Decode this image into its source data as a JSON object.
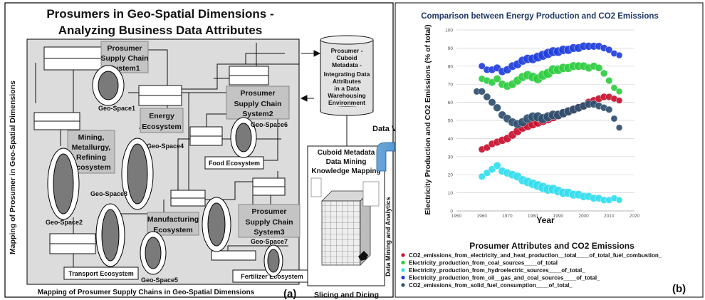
{
  "left_panel": {
    "title_line1": "Prosumers in Geo-Spatial Dimensions -",
    "title_line2": "Analyzing Business Data Attributes",
    "side_label": "Mapping of Prosumer in Geo-Spatial Dimensions",
    "bottom_label": "Mapping of Prosumer Supply Chains in Geo-Spatial Dimensions",
    "panel_tag": "(a)",
    "systems": [
      {
        "lines": [
          "Prosumer",
          "Supply Chain",
          "System1"
        ]
      },
      {
        "lines": [
          "Prosumer",
          "Supply Chain",
          "System2"
        ]
      },
      {
        "lines": [
          "Prosumer",
          "Supply Chain",
          "System3"
        ]
      }
    ],
    "ecosystems": {
      "energy": [
        "Energy",
        "Ecosystem"
      ],
      "mining": [
        "Mining,",
        "Metallurgy,",
        "Refining",
        "Ecosystem"
      ],
      "manufacturing": [
        "Manufacturing",
        "Ecosystem"
      ],
      "food": "Food Ecosystem",
      "transport": "Transport Ecosystem",
      "fertilizer": "Fertilizer Ecosystem"
    },
    "geo_spaces": [
      "Geo-Space1",
      "Geo-Space2",
      "Geo-Space3",
      "Geo-Space4",
      "Geo-Space5",
      "Geo-Space6",
      "Geo-Space7"
    ],
    "cuboid_db": [
      "Prosumer -",
      "Cuboid",
      "Metadata -",
      "Integrating Data",
      "Attributes",
      "in a Data",
      "Warehousing",
      "Environment"
    ],
    "mining_box": [
      "Cuboid Metadata",
      "Data Mining",
      "Knowledge Mapping"
    ],
    "side_label_right": "Data Mining and Analytics",
    "slicing_label": "Slicing and Dicing",
    "data_view": "Data View"
  },
  "chart_data": {
    "type": "scatter",
    "title": "Comparison between Energy Production and CO2 Emissions",
    "ylabel": "Electricity Production and CO2 Emissions (% of total)",
    "xlabel": "Year",
    "xlim": [
      1950,
      2020
    ],
    "ylim": [
      0,
      100
    ],
    "x_ticks": [
      "1950",
      "1960",
      "1970",
      "1980",
      "1990",
      "2000",
      "2010",
      "2020"
    ],
    "y_ticks": [
      "0",
      "10",
      "20",
      "30",
      "40",
      "50",
      "60",
      "70",
      "80",
      "90",
      "100"
    ],
    "grid": "horizontal",
    "legend_title": "Prosumer Attributes and CO2 Emissions",
    "panel_tag": "(b)",
    "series": [
      {
        "name": "CO2_emissions_from_electricity_and_heat_production__total____of_total_fuel_combustion_",
        "color": "#c8102e",
        "x": [
          1960,
          1962,
          1964,
          1966,
          1968,
          1970,
          1972,
          1974,
          1976,
          1978,
          1980,
          1982,
          1984,
          1986,
          1988,
          1990,
          1992,
          1994,
          1996,
          1998,
          2000,
          2002,
          2004,
          2006,
          2008,
          2010,
          2012,
          2014
        ],
        "y": [
          34,
          35,
          37,
          38,
          39,
          40,
          42,
          44,
          46,
          47,
          48,
          49,
          50,
          51,
          52,
          53,
          54,
          55,
          56,
          57,
          58,
          60,
          61,
          62,
          63,
          63,
          62,
          61
        ]
      },
      {
        "name": "Electricity_production_from_coal_sources____of_total",
        "color": "#2ecc40",
        "x": [
          1960,
          1962,
          1964,
          1966,
          1968,
          1970,
          1972,
          1974,
          1976,
          1978,
          1980,
          1982,
          1984,
          1986,
          1988,
          1990,
          1992,
          1994,
          1996,
          1998,
          2000,
          2002,
          2004,
          2006,
          2008,
          2010,
          2012,
          2014
        ],
        "y": [
          73,
          72,
          71,
          73,
          70,
          69,
          70,
          72,
          74,
          75,
          74,
          73,
          75,
          76,
          78,
          78,
          79,
          79,
          80,
          80,
          80,
          79,
          80,
          79,
          76,
          72,
          68,
          66
        ]
      },
      {
        "name": "Electricity_production_from_hydroelectric_sources____of_total_",
        "color": "#33ddee",
        "x": [
          1960,
          1962,
          1964,
          1966,
          1968,
          1970,
          1972,
          1974,
          1976,
          1978,
          1980,
          1982,
          1984,
          1986,
          1988,
          1990,
          1992,
          1994,
          1996,
          1998,
          2000,
          2002,
          2004,
          2006,
          2008,
          2010,
          2012,
          2014
        ],
        "y": [
          19,
          21,
          23,
          25,
          22,
          21,
          20,
          19,
          17,
          16,
          15,
          14,
          13,
          12,
          12,
          11,
          10,
          10,
          9,
          9,
          8,
          8,
          7,
          7,
          6,
          6,
          7,
          6
        ]
      },
      {
        "name": "Electricity_production_from_oil__gas_and_coal_sources____of_total_",
        "color": "#1f3fdb",
        "x": [
          1960,
          1962,
          1964,
          1966,
          1968,
          1970,
          1972,
          1974,
          1976,
          1978,
          1980,
          1982,
          1984,
          1986,
          1988,
          1990,
          1992,
          1994,
          1996,
          1998,
          2000,
          2002,
          2004,
          2006,
          2008,
          2010,
          2012,
          2014
        ],
        "y": [
          80,
          78,
          78,
          79,
          77,
          78,
          80,
          81,
          83,
          84,
          84,
          85,
          86,
          87,
          88,
          88,
          89,
          89,
          90,
          90,
          91,
          91,
          91,
          91,
          90,
          89,
          87,
          86
        ]
      },
      {
        "name": "CO2_emissions_from_solid_fuel_consumption____of_total_",
        "color": "#2f4f6f",
        "x": [
          1958,
          1960,
          1962,
          1964,
          1966,
          1968,
          1970,
          1972,
          1974,
          1976,
          1978,
          1980,
          1982,
          1984,
          1986,
          1988,
          1990,
          1992,
          1994,
          1996,
          1998,
          2000,
          2002,
          2004,
          2006,
          2008,
          2010,
          2012,
          2014
        ],
        "y": [
          66,
          66,
          63,
          60,
          57,
          53,
          51,
          49,
          48,
          49,
          51,
          52,
          52,
          51,
          52,
          53,
          53,
          54,
          55,
          56,
          57,
          58,
          59,
          59,
          58,
          57,
          56,
          51,
          46
        ]
      }
    ]
  }
}
